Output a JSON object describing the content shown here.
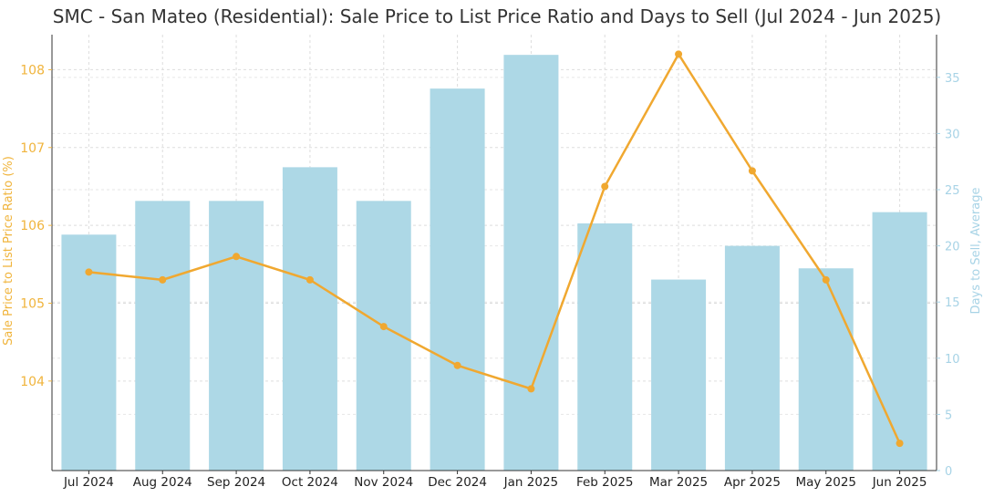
{
  "chart_data": {
    "type": "bar+line",
    "title": "SMC - San Mateo (Residential): Sale Price to List Price Ratio and Days to Sell (Jul 2024 - Jun 2025)",
    "categories": [
      "Jul 2024",
      "Aug 2024",
      "Sep 2024",
      "Oct 2024",
      "Nov 2024",
      "Dec 2024",
      "Jan 2025",
      "Feb 2025",
      "Mar 2025",
      "Apr 2025",
      "May 2025",
      "Jun 2025"
    ],
    "series": [
      {
        "name": "Days to Sell, Average",
        "type": "bar",
        "axis": "right",
        "color": "#add8e6",
        "values": [
          21,
          24,
          24,
          27,
          24,
          34,
          37,
          22,
          17,
          20,
          18,
          23
        ]
      },
      {
        "name": "Sale Price to List Price Ratio (%)",
        "type": "line",
        "axis": "left",
        "color": "#f0a830",
        "values": [
          105.4,
          105.3,
          105.6,
          105.3,
          104.7,
          104.2,
          103.9,
          106.5,
          108.2,
          106.7,
          105.3,
          103.2
        ]
      }
    ],
    "yleft": {
      "label": "Sale Price to List Price Ratio (%)",
      "lim": [
        102.85,
        108.45
      ],
      "ticks": [
        "104",
        "105",
        "106",
        "107",
        "108"
      ],
      "color": "#f0b43c"
    },
    "yright": {
      "label": "Days to Sell, Average",
      "lim": [
        0,
        38.8
      ],
      "ticks": [
        "0",
        "5",
        "10",
        "15",
        "20",
        "25",
        "30",
        "35"
      ],
      "color": "#a7d3e6"
    },
    "grid": true,
    "legend": "none"
  }
}
